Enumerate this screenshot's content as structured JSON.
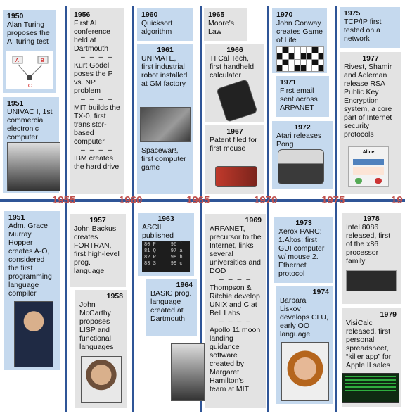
{
  "timeline_years": [
    "1955",
    "1960",
    "1965",
    "1970",
    "1975",
    "19"
  ],
  "events": {
    "e1950": {
      "year": "1950",
      "text": "Alan Turing proposes the AI turing test",
      "diagram_labels": [
        "A",
        "B",
        "C"
      ]
    },
    "e1951a": {
      "year": "1951",
      "text": "UNIVAC I, 1st commercial electronic computer"
    },
    "e1956": {
      "year": "1956",
      "items": [
        "First AI conference held at Dartmouth",
        "Kurt Gödel poses the P vs. NP problem",
        "MIT builds the TX-0, first transistor-based computer",
        "IBM creates the hard drive"
      ],
      "separator": "– – – –"
    },
    "e1960": {
      "year": "1960",
      "text": "Quicksort algorithm"
    },
    "e1961": {
      "year": "1961",
      "text": "UNIMATE, first industrial robot installed at GM factory",
      "extra": "Spacewar!, first computer game"
    },
    "e1965": {
      "year": "1965",
      "text": "Moore's Law"
    },
    "e1966": {
      "year": "1966",
      "text": "TI Cal Tech, first handheld calculator"
    },
    "e1967": {
      "year": "1967",
      "text": "Patent filed for first mouse"
    },
    "e1970": {
      "year": "1970",
      "text": "John Conway creates Game of Life"
    },
    "e1971": {
      "year": "1971",
      "text": "First email sent across ARPANET"
    },
    "e1972": {
      "year": "1972",
      "text": "Atari releases Pong"
    },
    "e1975": {
      "year": "1975",
      "text": "TCP/IP first tested on a network"
    },
    "e1977": {
      "year": "1977",
      "text": "Rivest, Shamir and Adleman release RSA Public Key Encryption system, a core part of Internet security protocols",
      "badge": "Alice"
    },
    "e1951b": {
      "year": "1951",
      "text": "Adm. Grace Murray Hopper creates A-O, considered the first programming language compiler"
    },
    "e1957": {
      "year": "1957",
      "text": "John Backus creates FORTRAN, first high-level prog. language"
    },
    "e1958": {
      "year": "1958",
      "text": "John McCarthy proposes LISP and functional languages"
    },
    "e1963": {
      "year": "1963",
      "text": "ASCII published",
      "ascii_rows": [
        "80 P     96 `",
        "81 Q     97 a",
        "82 R     98 b",
        "83 S     99 c"
      ]
    },
    "e1964": {
      "year": "1964",
      "text": "BASIC prog. language created at Dartmouth"
    },
    "e1969": {
      "year": "1969",
      "items": [
        "ARPANET, precursor to the Internet, links several universities and DOD",
        "Thompson & Ritchie develop UNIX and C at Bell Labs",
        "Apollo 11 moon landing guidance software created by Margaret Hamilton's team at MIT"
      ],
      "separator": "– – – –"
    },
    "e1973": {
      "year": "1973",
      "text": "Xerox PARC: 1.Altos: first GUI computer w/ mouse 2. Ethernet protocol"
    },
    "e1974": {
      "year": "1974",
      "text": "Barbara Liskov develops CLU, early OO language"
    },
    "e1978": {
      "year": "1978",
      "text": "Intel 8086 released, first of the x86 processor family"
    },
    "e1979": {
      "year": "1979",
      "text": "VisiCalc released, first personal spreadsheet, “killer app” for Apple II sales"
    }
  },
  "colors": {
    "axis": "#2f5597",
    "year_label": "#c0504d",
    "card_blue": "#c5d9ee",
    "card_gray": "#e3e3e3"
  }
}
